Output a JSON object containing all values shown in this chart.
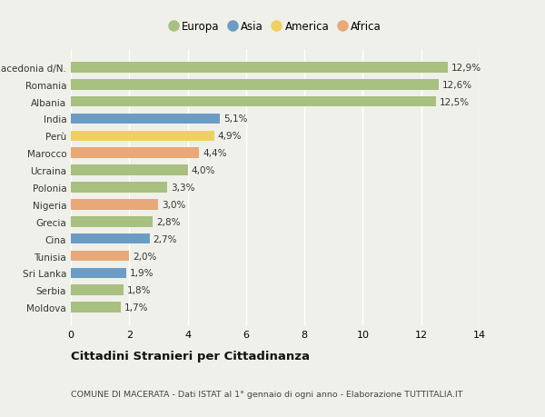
{
  "categories": [
    "Macedonia d/N.",
    "Romania",
    "Albania",
    "India",
    "Perù",
    "Marocco",
    "Ucraina",
    "Polonia",
    "Nigeria",
    "Grecia",
    "Cina",
    "Tunisia",
    "Sri Lanka",
    "Serbia",
    "Moldova"
  ],
  "values": [
    12.9,
    12.6,
    12.5,
    5.1,
    4.9,
    4.4,
    4.0,
    3.3,
    3.0,
    2.8,
    2.7,
    2.0,
    1.9,
    1.8,
    1.7
  ],
  "labels": [
    "12,9%",
    "12,6%",
    "12,5%",
    "5,1%",
    "4,9%",
    "4,4%",
    "4,0%",
    "3,3%",
    "3,0%",
    "2,8%",
    "2,7%",
    "2,0%",
    "1,9%",
    "1,8%",
    "1,7%"
  ],
  "continents": [
    "Europa",
    "Europa",
    "Europa",
    "Asia",
    "America",
    "Africa",
    "Europa",
    "Europa",
    "Africa",
    "Europa",
    "Asia",
    "Africa",
    "Asia",
    "Europa",
    "Europa"
  ],
  "continent_colors": {
    "Europa": "#a8c080",
    "Asia": "#6b9dc4",
    "America": "#f0d060",
    "Africa": "#e8a878"
  },
  "legend_order": [
    "Europa",
    "Asia",
    "America",
    "Africa"
  ],
  "title": "Cittadini Stranieri per Cittadinanza",
  "subtitle": "COMUNE DI MACERATA - Dati ISTAT al 1° gennaio di ogni anno - Elaborazione TUTTITALIA.IT",
  "xlim": [
    0,
    14
  ],
  "xticks": [
    0,
    2,
    4,
    6,
    8,
    10,
    12,
    14
  ],
  "background_color": "#f0f0eb",
  "grid_color": "#ffffff",
  "bar_height": 0.62
}
